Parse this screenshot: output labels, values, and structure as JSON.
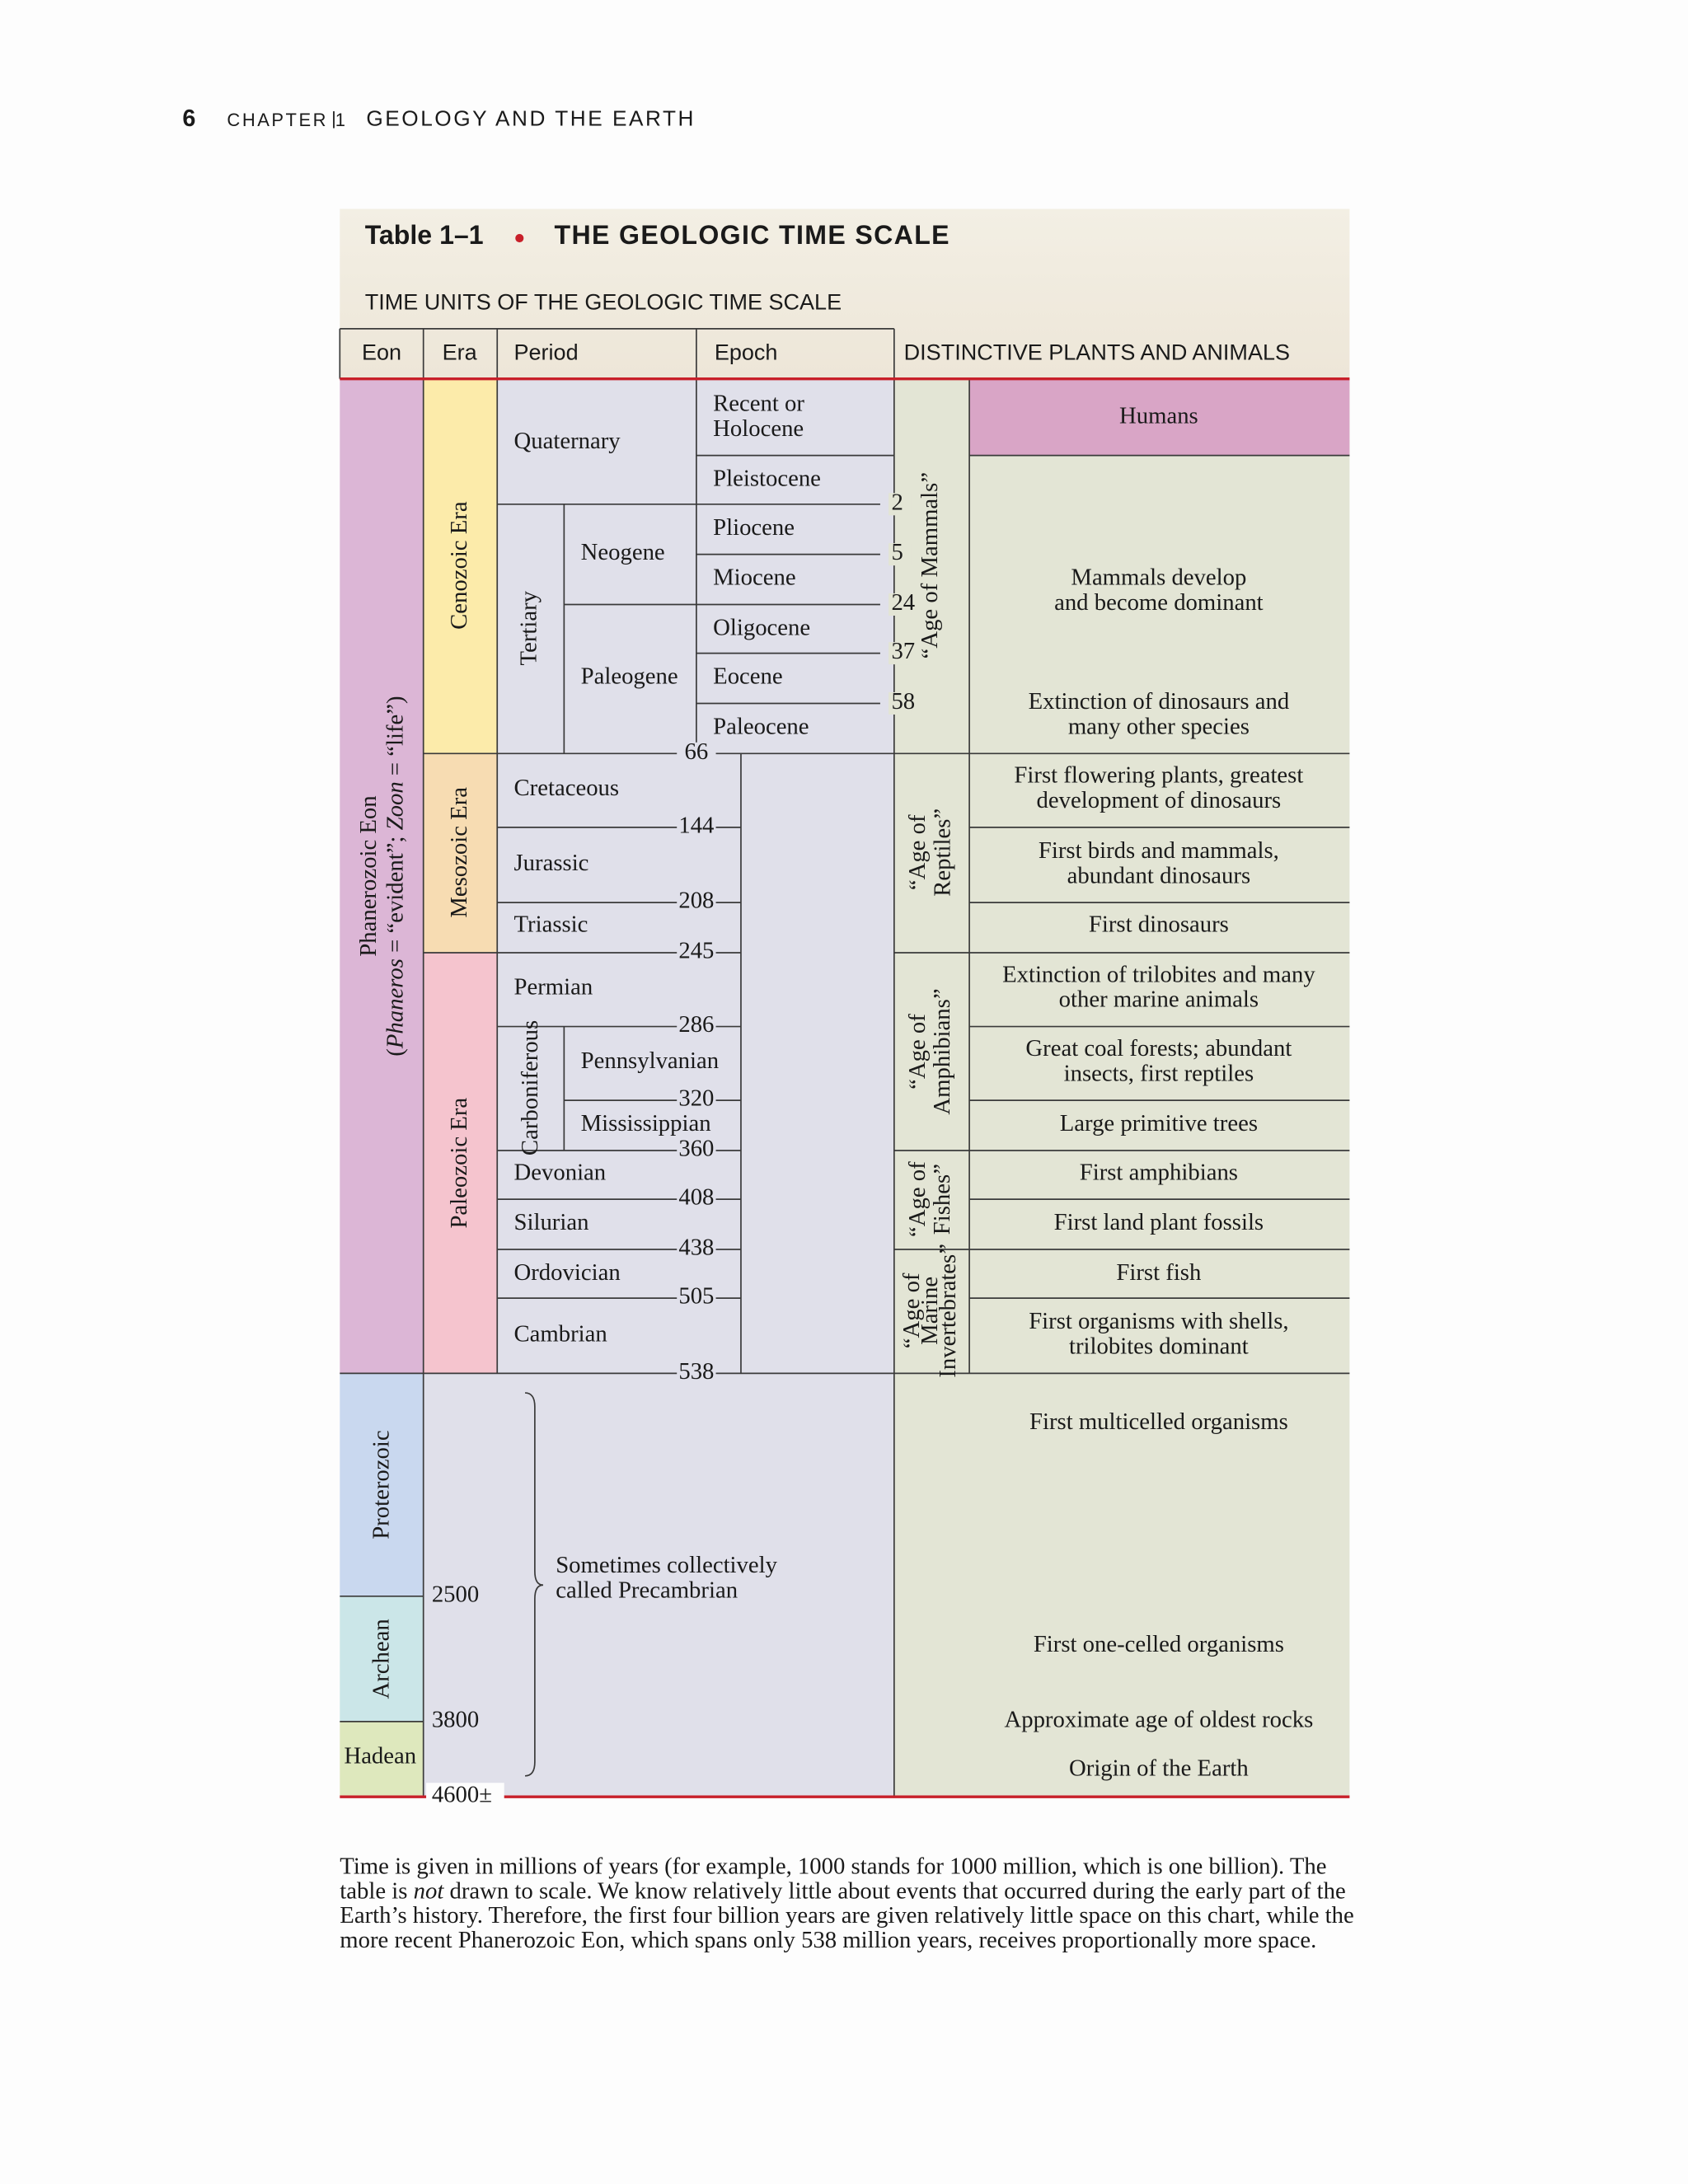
{
  "header": {
    "page_number": "6",
    "chapter": "CHAPTER 1",
    "section": "GEOLOGY AND THE EARTH"
  },
  "table": {
    "label": "Table 1–1",
    "title": "THE GEOLOGIC TIME SCALE",
    "subtitle": "TIME UNITS OF THE GEOLOGIC TIME SCALE",
    "columns": [
      "Eon",
      "Era",
      "Period",
      "Epoch",
      "DISTINCTIVE PLANTS AND ANIMALS"
    ],
    "eons": [
      {
        "name": "Phanerozoic Eon",
        "note": [
          "(",
          "Phaneros",
          " = “evident”; ",
          "Zoon",
          " = “life”)"
        ]
      },
      {
        "name": "Proterozoic"
      },
      {
        "name": "Archean"
      },
      {
        "name": "Hadean"
      }
    ],
    "eras": [
      "Cenozoic Era",
      "Mesozoic Era",
      "Paleozoic Era"
    ],
    "periods": [
      "Quaternary",
      "Tertiary",
      "Neogene",
      "Paleogene",
      "Cretaceous",
      "Jurassic",
      "Triassic",
      "Permian",
      "Carboniferous",
      "Pennsylvanian",
      "Mississippian",
      "Devonian",
      "Silurian",
      "Ordovician",
      "Cambrian"
    ],
    "epochs": [
      [
        "Recent or",
        "Holocene"
      ],
      [
        "Pleistocene"
      ],
      [
        "Pliocene"
      ],
      [
        "Miocene"
      ],
      [
        "Oligocene"
      ],
      [
        "Eocene"
      ],
      [
        "Paleocene"
      ]
    ],
    "boundaries": [
      2,
      5,
      24,
      37,
      58,
      66,
      144,
      208,
      245,
      286,
      320,
      360,
      408,
      438,
      505,
      538
    ],
    "precambrian_boundaries": [
      2500,
      3800,
      "4600±"
    ],
    "precambrian_note": [
      "Sometimes collectively",
      "called Precambrian"
    ],
    "ages": [
      [
        "“Age of Mammals”"
      ],
      [
        "“Age of",
        "Reptiles”"
      ],
      [
        "“Age of",
        "Amphibians”"
      ],
      [
        "“Age of",
        "Fishes”"
      ],
      [
        "“Age of",
        "Marine",
        "Invertebrates”"
      ]
    ],
    "events": [
      [
        "Humans"
      ],
      [
        "Mammals develop",
        "and become dominant"
      ],
      [
        "Extinction of dinosaurs and",
        "many other species"
      ],
      [
        "First flowering plants, greatest",
        "development of dinosaurs"
      ],
      [
        "First birds and mammals,",
        "abundant dinosaurs"
      ],
      [
        "First dinosaurs"
      ],
      [
        "Extinction of trilobites and many",
        "other marine animals"
      ],
      [
        "Great coal forests; abundant",
        "insects, first reptiles"
      ],
      [
        "Large primitive trees"
      ],
      [
        "First amphibians"
      ],
      [
        "First land plant fossils"
      ],
      [
        "First fish"
      ],
      [
        "First organisms with shells,",
        "trilobites dominant"
      ],
      [
        "First multicelled organisms"
      ],
      [
        "First one-celled organisms"
      ],
      [
        "Approximate age of oldest rocks"
      ],
      [
        "Origin of the Earth"
      ]
    ]
  },
  "caption": [
    [
      "Time is given in millions of years (for example, 1000 stands for 1000 million, which is one billion). The"
    ],
    [
      "table is ",
      "not",
      " drawn to scale. We know relatively little about events that occurred during the early part of the"
    ],
    [
      "Earth’s history. Therefore, the first four billion years are given relatively little space on this chart, while the"
    ],
    [
      "more recent Phanerozoic Eon, which spans only 538 million years, receives proportionally more space."
    ]
  ]
}
